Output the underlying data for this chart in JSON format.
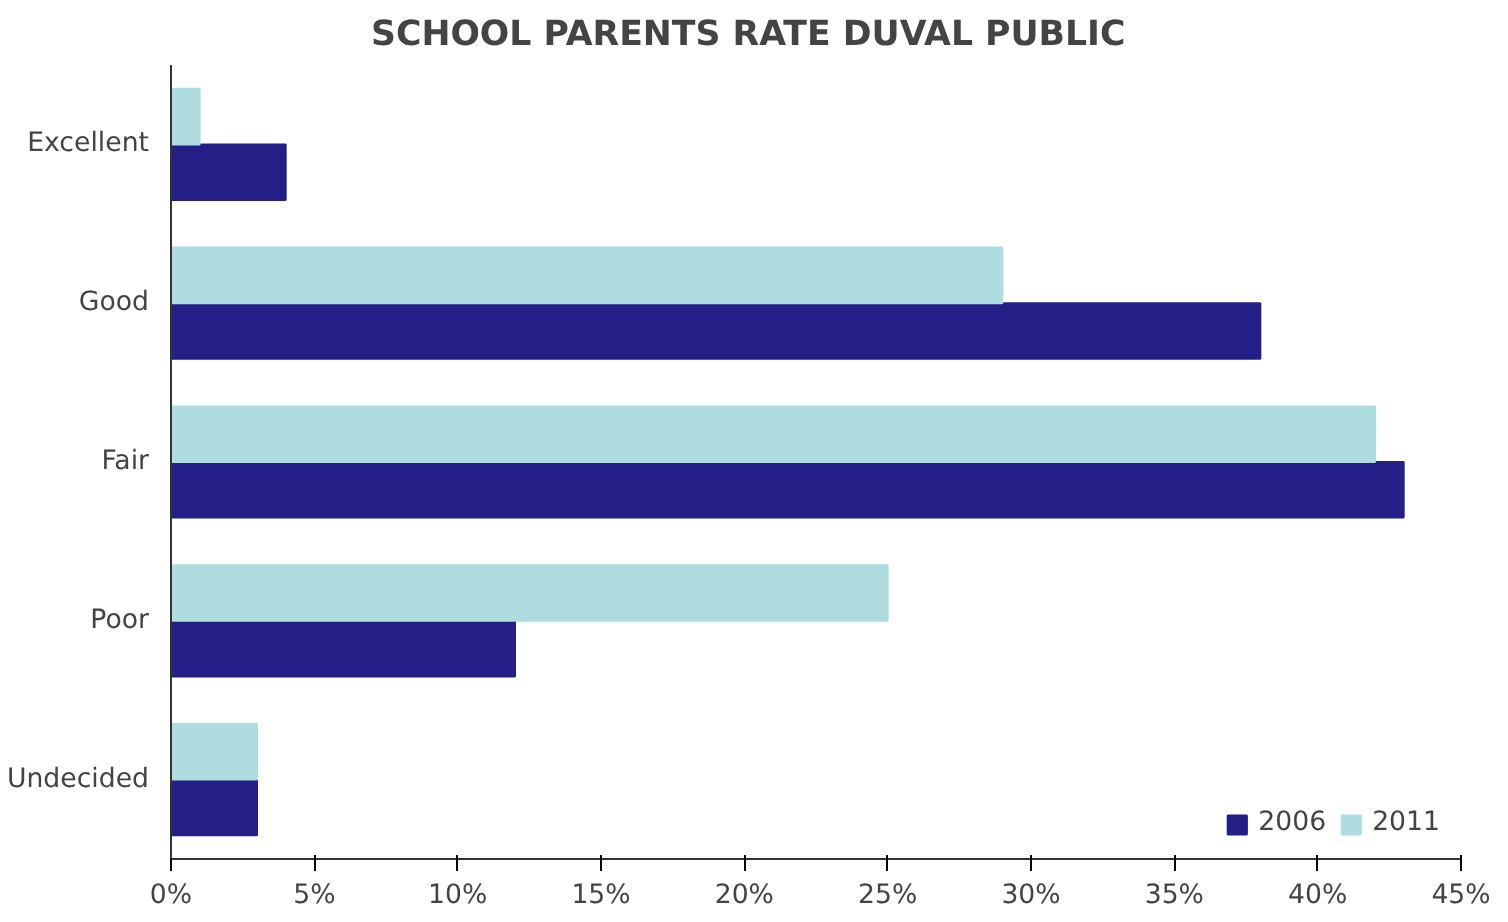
{
  "chart_data": {
    "type": "bar",
    "orientation": "horizontal",
    "title": "SCHOOL PARENTS RATE DUVAL PUBLIC",
    "categories": [
      "Excellent",
      "Good",
      "Fair",
      "Poor",
      "Undecided"
    ],
    "series": [
      {
        "name": "2006",
        "color": "#231f87",
        "values": [
          4,
          38,
          43,
          12,
          3
        ]
      },
      {
        "name": "2011",
        "color": "#aedcdf",
        "values": [
          1,
          29,
          42,
          25,
          3
        ]
      }
    ],
    "xlim": [
      0,
      45
    ],
    "xticks": [
      {
        "value": 0,
        "label": "0%"
      },
      {
        "value": 5,
        "label": "5%"
      },
      {
        "value": 10,
        "label": "10%"
      },
      {
        "value": 15,
        "label": "15%"
      },
      {
        "value": 20,
        "label": "20%"
      },
      {
        "value": 25,
        "label": "25%"
      },
      {
        "value": 30,
        "label": "30%"
      },
      {
        "value": 35,
        "label": "35%"
      },
      {
        "value": 40,
        "label": "40%"
      },
      {
        "value": 45,
        "label": "45%"
      }
    ],
    "grid": false,
    "legend": "bottom right"
  }
}
